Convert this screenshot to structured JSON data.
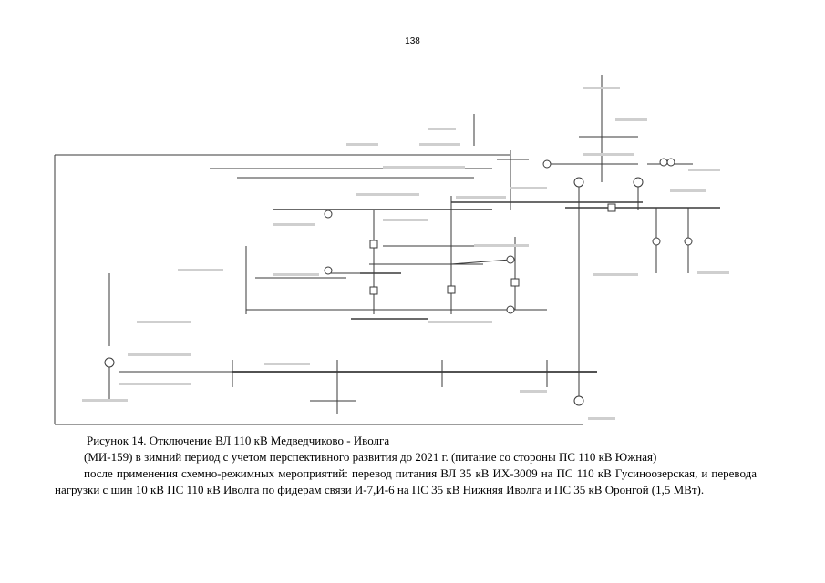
{
  "page": {
    "number": "138"
  },
  "figure": {
    "caption_line1": "Рисунок 14. Отключение ВЛ 110 кВ Медведчиково - Иволга",
    "caption_line2": "(МИ-159) в зимний период с учетом перспективного развития до 2021 г. (питание со стороны ПС 110 кВ Южная)",
    "caption_para": "после применения схемно-режимных мероприятий: перевод питания ВЛ 35 кВ ИХ-3009 на ПС 110 кВ Гусиноозерская, и перевода нагрузки с шин 10 кВ ПС 110 кВ Иволга по фидерам связи И-7,И-6 на ПС 35 кВ Нижняя Иволга и ПС 35 кВ Оронгой (1,5 МВт)."
  },
  "colors": {
    "line": "#3a3a3a",
    "faint": "#9a9a9a"
  }
}
